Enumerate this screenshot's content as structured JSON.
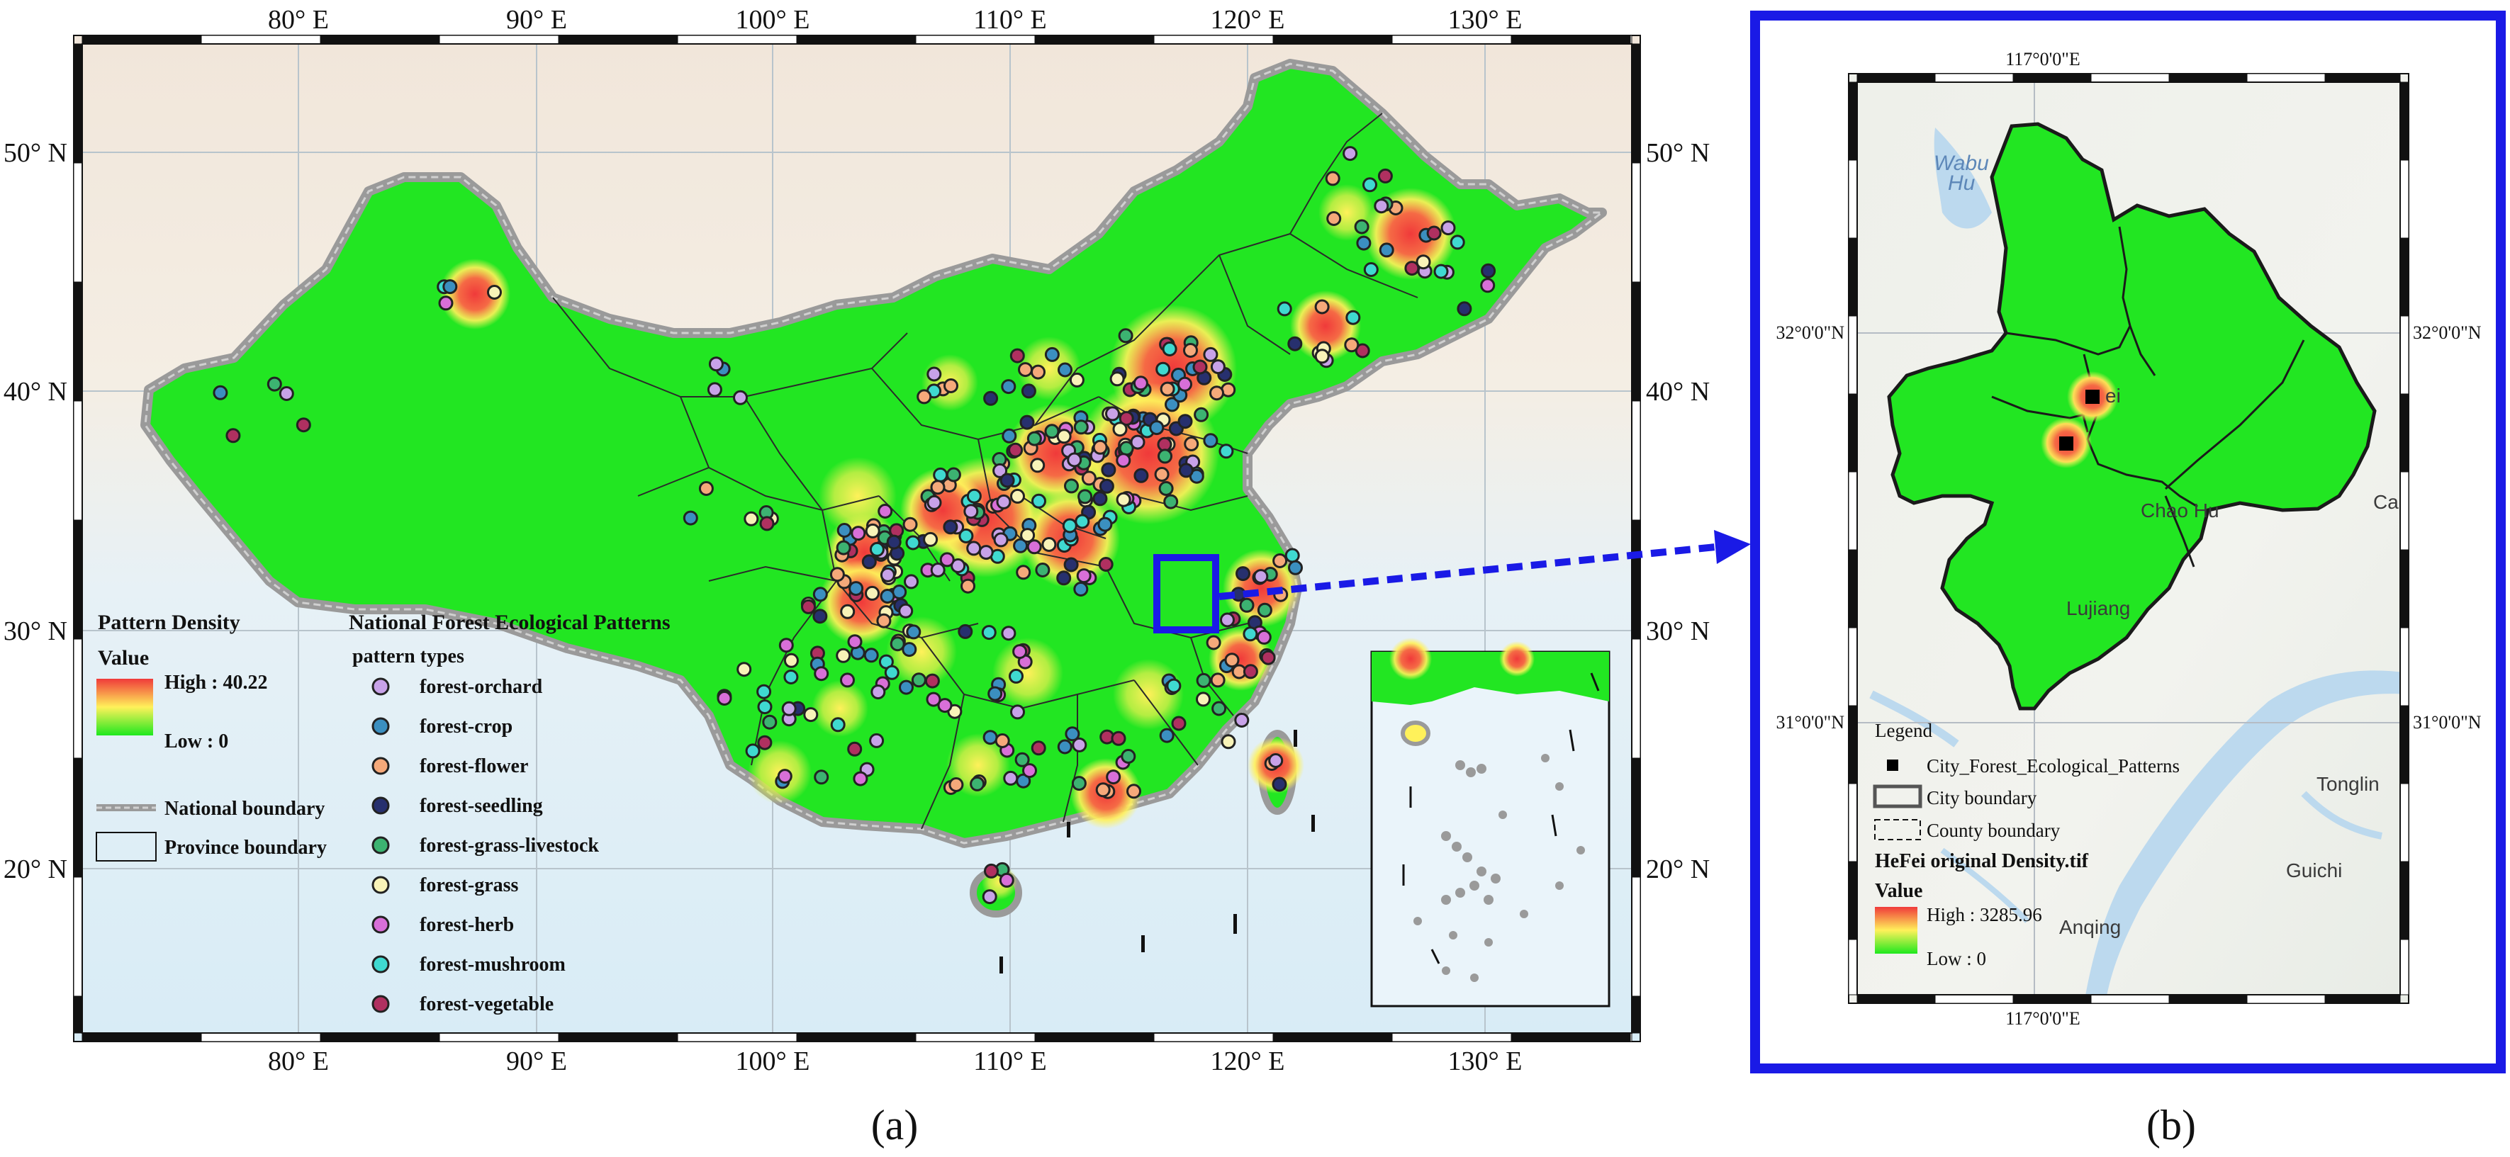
{
  "panel_a": {
    "label": "(a)",
    "lon_ticks": [
      "80° E",
      "90° E",
      "100° E",
      "110° E",
      "120° E",
      "130° E"
    ],
    "lat_ticks": [
      "50° N",
      "40° N",
      "30° N",
      "20° N"
    ],
    "density_legend": {
      "title": "Pattern Density",
      "value_label": "Value",
      "high": "High : 40.22",
      "low": "Low : 0"
    },
    "boundary_legend": {
      "national": "National boundary",
      "province": "Province boundary"
    },
    "pattern_legend": {
      "title": "National Forest Ecological Patterns",
      "subtitle": "pattern types",
      "items": [
        {
          "label": "forest-orchard",
          "color": "#c8a2e8"
        },
        {
          "label": "forest-crop",
          "color": "#3b8fc0"
        },
        {
          "label": "forest-flower",
          "color": "#f5a97a"
        },
        {
          "label": "forest-seedling",
          "color": "#27306e"
        },
        {
          "label": "forest-grass-livestock",
          "color": "#3cb371"
        },
        {
          "label": "forest-grass",
          "color": "#f8f3b8"
        },
        {
          "label": "forest-herb",
          "color": "#d86fd8"
        },
        {
          "label": "forest-mushroom",
          "color": "#3fd9d0"
        },
        {
          "label": "forest-vegetable",
          "color": "#b03060"
        }
      ]
    }
  },
  "panel_b": {
    "label": "(b)",
    "lon_tick": "117°0'0\"E",
    "lat_ticks": [
      "32°0'0\"N",
      "31°0'0\"N"
    ],
    "places": [
      "Wabu Hu",
      "Lujiang",
      "Chao Hu",
      "Tonglin",
      "Guichi",
      "Anqing",
      "Hefei"
    ],
    "legend": {
      "title": "Legend",
      "points": "City_Forest_Ecological_Patterns",
      "city": "City boundary",
      "county": "County boundary",
      "raster_title": "HeFei original Density.tif",
      "value_label": "Value",
      "high": "High : 3285.96",
      "low": "Low : 0"
    }
  },
  "colors": {
    "density_high": "#f03a3a",
    "density_mid": "#fff15a",
    "density_low": "#1ee81e",
    "inset_frame": "#1a1ae6",
    "arrow": "#1a1ae6"
  }
}
